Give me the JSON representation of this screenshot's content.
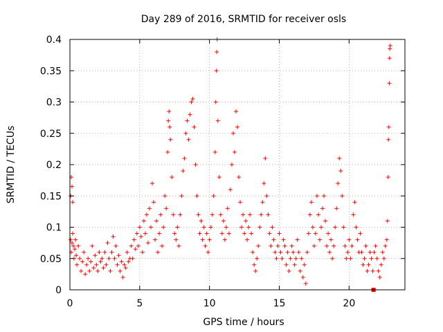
{
  "chart_data": {
    "type": "scatter",
    "title": "Day 289 of 2016, SRMTID for receiver osls",
    "xlabel": "GPS time / hours",
    "ylabel": "SRMTID / TECUs",
    "xlim": [
      0,
      24
    ],
    "ylim": [
      0,
      0.4
    ],
    "xticks": [
      0,
      5,
      10,
      15,
      20
    ],
    "xtick_labels": [
      "0",
      "5",
      "10",
      "15",
      "20"
    ],
    "yticks": [
      0,
      0.05,
      0.1,
      0.15,
      0.2,
      0.25,
      0.3,
      0.35,
      0.4
    ],
    "ytick_labels": [
      "0",
      "0.05",
      "0.1",
      "0.15",
      "0.2",
      "0.25",
      "0.3",
      "0.35",
      "0.4"
    ],
    "grid": true,
    "marker": "+",
    "color": "#ff0000",
    "series": [
      {
        "name": "SRMTID",
        "points": [
          [
            0.05,
            0.15
          ],
          [
            0.1,
            0.18
          ],
          [
            0.15,
            0.165
          ],
          [
            0.2,
            0.14
          ],
          [
            0.05,
            0.08
          ],
          [
            0.1,
            0.06
          ],
          [
            0.15,
            0.075
          ],
          [
            0.2,
            0.09
          ],
          [
            0.25,
            0.07
          ],
          [
            0.3,
            0.05
          ],
          [
            0.35,
            0.065
          ],
          [
            0.4,
            0.08
          ],
          [
            0.45,
            0.055
          ],
          [
            0.5,
            0.04
          ],
          [
            0.6,
            0.07
          ],
          [
            0.7,
            0.05
          ],
          [
            0.8,
            0.03
          ],
          [
            0.9,
            0.045
          ],
          [
            1.0,
            0.06
          ],
          [
            1.1,
            0.025
          ],
          [
            1.2,
            0.04
          ],
          [
            1.3,
            0.05
          ],
          [
            1.4,
            0.03
          ],
          [
            1.5,
            0.045
          ],
          [
            1.6,
            0.07
          ],
          [
            1.7,
            0.035
          ],
          [
            1.8,
            0.055
          ],
          [
            1.9,
            0.04
          ],
          [
            2.0,
            0.03
          ],
          [
            2.1,
            0.06
          ],
          [
            2.2,
            0.045
          ],
          [
            2.3,
            0.05
          ],
          [
            2.4,
            0.035
          ],
          [
            2.5,
            0.06
          ],
          [
            2.6,
            0.04
          ],
          [
            2.7,
            0.075
          ],
          [
            2.8,
            0.05
          ],
          [
            2.9,
            0.03
          ],
          [
            3.0,
            0.06
          ],
          [
            3.1,
            0.085
          ],
          [
            3.2,
            0.05
          ],
          [
            3.3,
            0.07
          ],
          [
            3.4,
            0.04
          ],
          [
            3.5,
            0.055
          ],
          [
            3.6,
            0.03
          ],
          [
            3.7,
            0.045
          ],
          [
            3.8,
            0.02
          ],
          [
            3.9,
            0.04
          ],
          [
            4.0,
            0.035
          ],
          [
            4.1,
            0.06
          ],
          [
            4.2,
            0.045
          ],
          [
            4.3,
            0.05
          ],
          [
            4.4,
            0.07
          ],
          [
            4.5,
            0.05
          ],
          [
            4.6,
            0.08
          ],
          [
            4.7,
            0.065
          ],
          [
            4.8,
            0.09
          ],
          [
            4.9,
            0.07
          ],
          [
            5.0,
            0.1
          ],
          [
            5.1,
            0.085
          ],
          [
            5.2,
            0.06
          ],
          [
            5.3,
            0.11
          ],
          [
            5.4,
            0.09
          ],
          [
            5.5,
            0.12
          ],
          [
            5.6,
            0.075
          ],
          [
            5.7,
            0.13
          ],
          [
            5.8,
            0.1
          ],
          [
            5.9,
            0.17
          ],
          [
            6.0,
            0.14
          ],
          [
            6.1,
            0.08
          ],
          [
            6.2,
            0.11
          ],
          [
            6.3,
            0.06
          ],
          [
            6.4,
            0.09
          ],
          [
            6.5,
            0.12
          ],
          [
            6.6,
            0.07
          ],
          [
            6.7,
            0.1
          ],
          [
            6.8,
            0.15
          ],
          [
            6.9,
            0.13
          ],
          [
            7.0,
            0.22
          ],
          [
            7.05,
            0.27
          ],
          [
            7.1,
            0.285
          ],
          [
            7.15,
            0.26
          ],
          [
            7.2,
            0.24
          ],
          [
            7.3,
            0.18
          ],
          [
            7.4,
            0.12
          ],
          [
            7.5,
            0.09
          ],
          [
            7.6,
            0.08
          ],
          [
            7.7,
            0.1
          ],
          [
            7.8,
            0.07
          ],
          [
            7.9,
            0.12
          ],
          [
            8.0,
            0.15
          ],
          [
            8.1,
            0.19
          ],
          [
            8.2,
            0.21
          ],
          [
            8.3,
            0.25
          ],
          [
            8.4,
            0.27
          ],
          [
            8.5,
            0.24
          ],
          [
            8.6,
            0.28
          ],
          [
            8.7,
            0.3
          ],
          [
            8.8,
            0.305
          ],
          [
            8.9,
            0.26
          ],
          [
            9.0,
            0.2
          ],
          [
            9.1,
            0.15
          ],
          [
            9.2,
            0.12
          ],
          [
            9.3,
            0.09
          ],
          [
            9.4,
            0.11
          ],
          [
            9.5,
            0.08
          ],
          [
            9.6,
            0.1
          ],
          [
            9.7,
            0.07
          ],
          [
            9.8,
            0.09
          ],
          [
            9.9,
            0.06
          ],
          [
            10.0,
            0.08
          ],
          [
            10.1,
            0.1
          ],
          [
            10.2,
            0.12
          ],
          [
            10.3,
            0.15
          ],
          [
            10.4,
            0.22
          ],
          [
            10.45,
            0.3
          ],
          [
            10.5,
            0.35
          ],
          [
            10.52,
            0.38
          ],
          [
            10.55,
            0.4
          ],
          [
            10.6,
            0.27
          ],
          [
            10.7,
            0.18
          ],
          [
            10.8,
            0.12
          ],
          [
            10.9,
            0.09
          ],
          [
            11.0,
            0.11
          ],
          [
            11.1,
            0.08
          ],
          [
            11.2,
            0.1
          ],
          [
            11.3,
            0.13
          ],
          [
            11.4,
            0.09
          ],
          [
            11.5,
            0.16
          ],
          [
            11.6,
            0.2
          ],
          [
            11.7,
            0.25
          ],
          [
            11.8,
            0.22
          ],
          [
            11.9,
            0.285
          ],
          [
            12.0,
            0.26
          ],
          [
            12.1,
            0.18
          ],
          [
            12.2,
            0.14
          ],
          [
            12.3,
            0.1
          ],
          [
            12.4,
            0.12
          ],
          [
            12.5,
            0.09
          ],
          [
            12.6,
            0.11
          ],
          [
            12.7,
            0.08
          ],
          [
            12.8,
            0.1
          ],
          [
            12.9,
            0.12
          ],
          [
            13.0,
            0.09
          ],
          [
            13.1,
            0.06
          ],
          [
            13.2,
            0.04
          ],
          [
            13.3,
            0.03
          ],
          [
            13.4,
            0.05
          ],
          [
            13.5,
            0.07
          ],
          [
            13.6,
            0.1
          ],
          [
            13.7,
            0.12
          ],
          [
            13.8,
            0.14
          ],
          [
            13.9,
            0.17
          ],
          [
            14.0,
            0.21
          ],
          [
            14.1,
            0.15
          ],
          [
            14.2,
            0.12
          ],
          [
            14.3,
            0.09
          ],
          [
            14.4,
            0.07
          ],
          [
            14.5,
            0.1
          ],
          [
            14.6,
            0.08
          ],
          [
            14.7,
            0.06
          ],
          [
            14.8,
            0.05
          ],
          [
            14.9,
            0.07
          ],
          [
            15.0,
            0.09
          ],
          [
            15.1,
            0.06
          ],
          [
            15.2,
            0.05
          ],
          [
            15.3,
            0.08
          ],
          [
            15.4,
            0.07
          ],
          [
            15.5,
            0.04
          ],
          [
            15.6,
            0.06
          ],
          [
            15.7,
            0.03
          ],
          [
            15.8,
            0.05
          ],
          [
            15.9,
            0.07
          ],
          [
            16.0,
            0.06
          ],
          [
            16.1,
            0.04
          ],
          [
            16.2,
            0.05
          ],
          [
            16.3,
            0.08
          ],
          [
            16.4,
            0.06
          ],
          [
            16.5,
            0.03
          ],
          [
            16.6,
            0.05
          ],
          [
            16.7,
            0.02
          ],
          [
            16.8,
            0.04
          ],
          [
            16.9,
            0.01
          ],
          [
            17.0,
            0.06
          ],
          [
            17.1,
            0.09
          ],
          [
            17.2,
            0.12
          ],
          [
            17.3,
            0.14
          ],
          [
            17.4,
            0.1
          ],
          [
            17.5,
            0.07
          ],
          [
            17.6,
            0.09
          ],
          [
            17.7,
            0.15
          ],
          [
            17.8,
            0.12
          ],
          [
            17.9,
            0.08
          ],
          [
            18.0,
            0.1
          ],
          [
            18.1,
            0.13
          ],
          [
            18.2,
            0.15
          ],
          [
            18.3,
            0.11
          ],
          [
            18.4,
            0.07
          ],
          [
            18.5,
            0.09
          ],
          [
            18.6,
            0.06
          ],
          [
            18.7,
            0.08
          ],
          [
            18.8,
            0.05
          ],
          [
            18.9,
            0.07
          ],
          [
            19.0,
            0.1
          ],
          [
            19.1,
            0.13
          ],
          [
            19.2,
            0.17
          ],
          [
            19.3,
            0.21
          ],
          [
            19.4,
            0.19
          ],
          [
            19.5,
            0.15
          ],
          [
            19.6,
            0.1
          ],
          [
            19.7,
            0.07
          ],
          [
            19.8,
            0.05
          ],
          [
            19.9,
            0.06
          ],
          [
            20.0,
            0.08
          ],
          [
            20.1,
            0.05
          ],
          [
            20.2,
            0.07
          ],
          [
            20.3,
            0.12
          ],
          [
            20.4,
            0.14
          ],
          [
            20.5,
            0.1
          ],
          [
            20.6,
            0.08
          ],
          [
            20.7,
            0.06
          ],
          [
            20.8,
            0.09
          ],
          [
            20.9,
            0.06
          ],
          [
            21.0,
            0.04
          ],
          [
            21.1,
            0.05
          ],
          [
            21.2,
            0.07
          ],
          [
            21.3,
            0.03
          ],
          [
            21.4,
            0.04
          ],
          [
            21.5,
            0.06
          ],
          [
            21.6,
            0.05
          ],
          [
            21.7,
            0.03
          ],
          [
            21.8,
            0.06
          ],
          [
            21.9,
            0.07
          ],
          [
            22.0,
            0.05
          ],
          [
            22.1,
            0.03
          ],
          [
            22.2,
            0.02
          ],
          [
            22.3,
            0.04
          ],
          [
            22.4,
            0.06
          ],
          [
            22.5,
            0.05
          ],
          [
            22.6,
            0.07
          ],
          [
            22.7,
            0.08
          ],
          [
            22.75,
            0.11
          ],
          [
            22.8,
            0.18
          ],
          [
            22.82,
            0.24
          ],
          [
            22.85,
            0.26
          ],
          [
            22.88,
            0.33
          ],
          [
            22.9,
            0.37
          ],
          [
            22.92,
            0.385
          ],
          [
            22.95,
            0.39
          ]
        ]
      }
    ],
    "markers": [
      {
        "label": "square-marker",
        "x": 21.75,
        "y": 0.0
      }
    ]
  }
}
